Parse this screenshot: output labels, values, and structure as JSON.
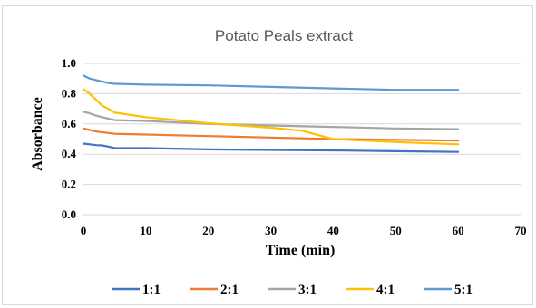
{
  "chart_data": {
    "type": "line",
    "title": "Potato Peals extract",
    "xlabel": "Time (min)",
    "ylabel": "Absorbance",
    "xlim": [
      0,
      70
    ],
    "ylim": [
      0,
      1.0
    ],
    "xticks": [
      "0",
      "10",
      "20",
      "30",
      "40",
      "50",
      "60",
      "70"
    ],
    "yticks": [
      "0.0",
      "0.2",
      "0.4",
      "0.6",
      "0.8",
      "1.0"
    ],
    "grid": "horizontal",
    "legend_position": "bottom",
    "series": [
      {
        "name": "1:1",
        "color": "#4472c4",
        "x": [
          0,
          1,
          2,
          3,
          4,
          5,
          10,
          20,
          30,
          40,
          50,
          60
        ],
        "y": [
          0.47,
          0.465,
          0.46,
          0.458,
          0.45,
          0.44,
          0.44,
          0.432,
          0.428,
          0.425,
          0.42,
          0.415
        ]
      },
      {
        "name": "2:1",
        "color": "#ed7d31",
        "x": [
          0,
          1,
          2,
          3,
          4,
          5,
          10,
          20,
          30,
          40,
          50,
          60
        ],
        "y": [
          0.57,
          0.56,
          0.55,
          0.545,
          0.54,
          0.535,
          0.53,
          0.52,
          0.51,
          0.5,
          0.495,
          0.49
        ]
      },
      {
        "name": "3:1",
        "color": "#a5a5a5",
        "x": [
          0,
          1,
          2,
          3,
          4,
          5,
          10,
          20,
          30,
          40,
          50,
          60
        ],
        "y": [
          0.68,
          0.67,
          0.655,
          0.645,
          0.635,
          0.625,
          0.62,
          0.6,
          0.59,
          0.58,
          0.57,
          0.565
        ]
      },
      {
        "name": "4:1",
        "color": "#ffc000",
        "x": [
          0,
          1,
          2,
          3,
          4,
          5,
          10,
          20,
          30,
          35,
          40,
          50,
          60
        ],
        "y": [
          0.83,
          0.8,
          0.76,
          0.72,
          0.7,
          0.675,
          0.645,
          0.605,
          0.575,
          0.555,
          0.5,
          0.48,
          0.465
        ]
      },
      {
        "name": "5:1",
        "color": "#5b9bd5",
        "x": [
          0,
          1,
          2,
          3,
          4,
          5,
          10,
          20,
          30,
          40,
          50,
          60
        ],
        "y": [
          0.92,
          0.9,
          0.89,
          0.88,
          0.87,
          0.865,
          0.86,
          0.855,
          0.845,
          0.835,
          0.825,
          0.825
        ]
      }
    ]
  }
}
